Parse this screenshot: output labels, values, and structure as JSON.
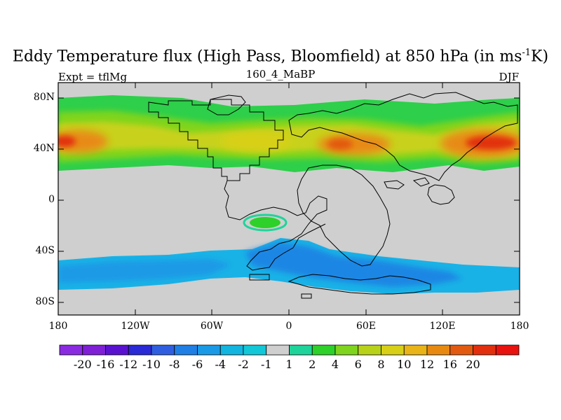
{
  "title": {
    "main": "Eddy Temperature flux (High Pass, Bloomfield) at 850 hPa (in ms",
    "sup": "-1",
    "tail": "K)"
  },
  "experiment": "Expt = tflMg",
  "run": "160_4_MaBP",
  "season": "DJF",
  "y_ticks": [
    "80N",
    "40N",
    "0",
    "40S",
    "80S"
  ],
  "x_ticks": [
    "180",
    "120W",
    "60W",
    "0",
    "60E",
    "120E",
    "180"
  ],
  "colorbar": {
    "labels": [
      "-20",
      "-16",
      "-12",
      "-10",
      "-8",
      "-6",
      "-4",
      "-2",
      "-1",
      "1",
      "2",
      "4",
      "6",
      "8",
      "10",
      "12",
      "16",
      "20"
    ],
    "colors": [
      "#8a2be2",
      "#7f1fd6",
      "#5a12d0",
      "#2a2ad6",
      "#2f5fe0",
      "#1f7fe4",
      "#1a9ae6",
      "#12b5e0",
      "#12c8d8",
      "#cfcfcf",
      "#1fd49a",
      "#2ed02a",
      "#7fd41e",
      "#b8d21a",
      "#d8d018",
      "#e8b418",
      "#e88a12",
      "#e25a10",
      "#e2300e",
      "#e8120e"
    ],
    "missing_color": "#cfcfcf"
  }
}
